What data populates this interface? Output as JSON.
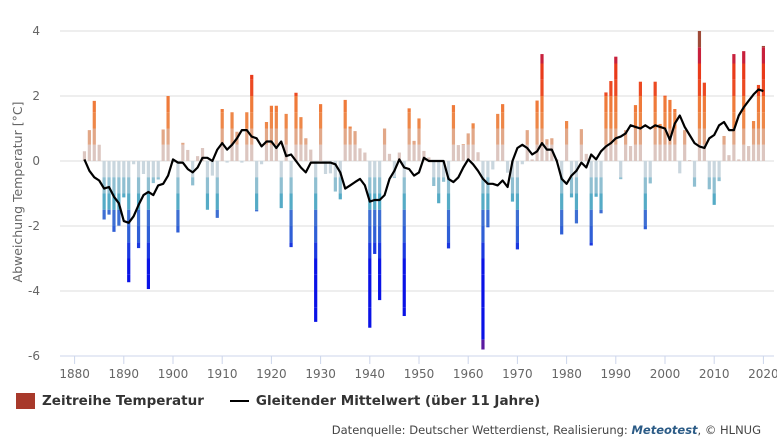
{
  "chart_data": {
    "type": "bar",
    "title": "",
    "xlabel": "",
    "ylabel": "Abweichung Temperatur [°C]",
    "xlim": [
      1880,
      2022
    ],
    "ylim": [
      -6,
      4
    ],
    "x_ticks": [
      1880,
      1890,
      1900,
      1910,
      1920,
      1930,
      1940,
      1950,
      1960,
      1970,
      1980,
      1990,
      2000,
      2010,
      2020
    ],
    "y_ticks": [
      -6,
      -4,
      -2,
      0,
      2,
      4
    ],
    "grid": "horizontal",
    "legend_position": "bottom-left",
    "colors": {
      "warm_scale": [
        "#d8c2bc",
        "#ee8a4a",
        "#ea3a1a",
        "#c41d3c",
        "#9e4a38"
      ],
      "cold_scale": [
        "#c7d3da",
        "#55acc6",
        "#2f5fd6",
        "#0a12e6",
        "#5a1aa0"
      ],
      "line": "#000000",
      "legend_swatch": "#a8392b",
      "grid": "#dddddd"
    },
    "series": [
      {
        "name": "Zeitreihe Temperatur",
        "type": "bar",
        "x": [
          1882,
          1883,
          1884,
          1885,
          1886,
          1887,
          1888,
          1889,
          1890,
          1891,
          1892,
          1893,
          1894,
          1895,
          1896,
          1897,
          1898,
          1899,
          1900,
          1901,
          1902,
          1903,
          1904,
          1905,
          1906,
          1907,
          1908,
          1909,
          1910,
          1911,
          1912,
          1913,
          1914,
          1915,
          1916,
          1917,
          1918,
          1919,
          1920,
          1921,
          1922,
          1923,
          1924,
          1925,
          1926,
          1927,
          1928,
          1929,
          1930,
          1931,
          1932,
          1933,
          1934,
          1935,
          1936,
          1937,
          1938,
          1939,
          1940,
          1941,
          1942,
          1943,
          1944,
          1945,
          1946,
          1947,
          1948,
          1949,
          1950,
          1951,
          1952,
          1953,
          1954,
          1955,
          1956,
          1957,
          1958,
          1959,
          1960,
          1961,
          1962,
          1963,
          1964,
          1965,
          1966,
          1967,
          1968,
          1969,
          1970,
          1971,
          1972,
          1973,
          1974,
          1975,
          1976,
          1977,
          1978,
          1979,
          1980,
          1981,
          1982,
          1983,
          1984,
          1985,
          1986,
          1987,
          1988,
          1989,
          1990,
          1991,
          1992,
          1993,
          1994,
          1995,
          1996,
          1997,
          1998,
          1999,
          2000,
          2001,
          2002,
          2003,
          2004,
          2005,
          2006,
          2007,
          2008,
          2009,
          2010,
          2011,
          2012,
          2013,
          2014,
          2015,
          2016,
          2017,
          2018,
          2019,
          2020
        ],
        "values": [
          0.3,
          0.95,
          1.85,
          0.5,
          -1.8,
          -1.65,
          -2.18,
          -1.99,
          -1.12,
          -3.73,
          -0.1,
          -2.68,
          -0.4,
          -3.94,
          -0.68,
          -0.57,
          0.97,
          2.0,
          -0.05,
          -2.2,
          0.56,
          0.34,
          -0.75,
          0.15,
          0.4,
          -1.5,
          -0.45,
          -1.75,
          1.6,
          -0.05,
          1.5,
          0.9,
          -0.05,
          1.5,
          2.65,
          -1.55,
          -0.1,
          1.2,
          1.7,
          1.7,
          -1.45,
          1.45,
          -2.65,
          2.1,
          1.35,
          0.7,
          0.35,
          -4.95,
          1.75,
          -0.4,
          -0.38,
          -0.94,
          -1.18,
          1.88,
          1.06,
          0.92,
          0.39,
          0.26,
          -5.13,
          -2.86,
          -4.28,
          1.0,
          0.22,
          -0.51,
          0.26,
          -4.77,
          1.62,
          0.62,
          1.31,
          0.31,
          0.11,
          -0.77,
          -1.3,
          -0.64,
          -2.69,
          1.72,
          0.49,
          0.52,
          0.85,
          1.16,
          0.27,
          -5.8,
          -2.04,
          -0.26,
          1.45,
          1.75,
          -0.36,
          -1.25,
          -2.72,
          -0.1,
          0.95,
          0.05,
          1.86,
          3.29,
          0.67,
          0.7,
          0.05,
          -2.26,
          1.23,
          -1.12,
          -1.92,
          0.98,
          0.22,
          -2.6,
          -1.1,
          -1.61,
          2.11,
          2.46,
          3.21,
          -0.56,
          0.95,
          0.46,
          1.72,
          2.44,
          -2.1,
          -0.69,
          2.44,
          1.14,
          2.01,
          1.88,
          1.6,
          -0.38,
          0.95,
          0.03,
          -0.79,
          4.0,
          2.41,
          -0.87,
          -1.35,
          -0.62,
          0.77,
          0.18,
          3.29,
          0.05,
          3.38,
          0.46,
          1.23,
          2.34,
          3.54
        ]
      },
      {
        "name": "Gleitender Mittelwert (über 11 Jahre)",
        "type": "line",
        "x": [
          1882,
          1883,
          1884,
          1885,
          1886,
          1887,
          1888,
          1889,
          1890,
          1891,
          1892,
          1893,
          1894,
          1895,
          1896,
          1897,
          1898,
          1899,
          1900,
          1901,
          1902,
          1903,
          1904,
          1905,
          1906,
          1907,
          1908,
          1909,
          1910,
          1911,
          1912,
          1913,
          1914,
          1915,
          1916,
          1917,
          1918,
          1919,
          1920,
          1921,
          1922,
          1923,
          1924,
          1925,
          1926,
          1927,
          1928,
          1929,
          1930,
          1931,
          1932,
          1933,
          1934,
          1935,
          1936,
          1937,
          1938,
          1939,
          1940,
          1941,
          1942,
          1943,
          1944,
          1945,
          1946,
          1947,
          1948,
          1949,
          1950,
          1951,
          1952,
          1953,
          1954,
          1955,
          1956,
          1957,
          1958,
          1959,
          1960,
          1961,
          1962,
          1963,
          1964,
          1965,
          1966,
          1967,
          1968,
          1969,
          1970,
          1971,
          1972,
          1973,
          1974,
          1975,
          1976,
          1977,
          1978,
          1979,
          1980,
          1981,
          1982,
          1983,
          1984,
          1985,
          1986,
          1987,
          1988,
          1989,
          1990,
          1991,
          1992,
          1993,
          1994,
          1995,
          1996,
          1997,
          1998,
          1999,
          2000,
          2001,
          2002,
          2003,
          2004,
          2005,
          2006,
          2007,
          2008,
          2009,
          2010,
          2011,
          2012,
          2013,
          2014,
          2015,
          2016,
          2017,
          2018,
          2019,
          2020
        ],
        "values": [
          0.05,
          -0.3,
          -0.5,
          -0.6,
          -0.85,
          -0.8,
          -1.1,
          -1.3,
          -1.85,
          -1.9,
          -1.7,
          -1.35,
          -1.05,
          -0.95,
          -1.05,
          -0.75,
          -0.7,
          -0.45,
          0.05,
          -0.05,
          -0.05,
          -0.25,
          -0.35,
          -0.2,
          0.1,
          0.1,
          0.0,
          0.35,
          0.55,
          0.35,
          0.5,
          0.7,
          0.95,
          0.95,
          0.75,
          0.7,
          0.45,
          0.6,
          0.6,
          0.4,
          0.6,
          0.15,
          0.2,
          0.0,
          -0.2,
          -0.35,
          -0.05,
          -0.05,
          -0.05,
          -0.05,
          -0.05,
          -0.1,
          -0.35,
          -0.85,
          -0.75,
          -0.65,
          -0.55,
          -0.75,
          -1.25,
          -1.2,
          -1.2,
          -1.05,
          -0.55,
          -0.3,
          0.05,
          -0.2,
          -0.25,
          -0.45,
          -0.35,
          0.1,
          0.0,
          0.0,
          0.0,
          0.0,
          -0.55,
          -0.65,
          -0.5,
          -0.2,
          0.05,
          -0.1,
          -0.3,
          -0.55,
          -0.7,
          -0.7,
          -0.75,
          -0.6,
          -0.8,
          0.0,
          0.4,
          0.5,
          0.4,
          0.2,
          0.3,
          0.55,
          0.35,
          0.35,
          0.0,
          -0.55,
          -0.7,
          -0.45,
          -0.3,
          -0.05,
          -0.2,
          0.2,
          0.05,
          0.3,
          0.45,
          0.55,
          0.7,
          0.75,
          0.85,
          1.1,
          1.05,
          1.0,
          1.1,
          1.0,
          1.1,
          1.05,
          1.0,
          0.65,
          1.15,
          1.4,
          1.05,
          0.8,
          0.55,
          0.45,
          0.4,
          0.7,
          0.8,
          1.1,
          1.2,
          0.95,
          0.95,
          1.4,
          1.65,
          1.85,
          2.05,
          2.2,
          2.15
        ]
      }
    ]
  },
  "legend": {
    "bar_label": "Zeitreihe Temperatur",
    "line_label": "Gleitender Mittelwert (über 11 Jahre)"
  },
  "credit": {
    "prefix": "Datenquelle: Deutscher Wetterdienst, Realisierung: ",
    "brand": "Meteotest",
    "suffix": ", © HLNUG"
  }
}
